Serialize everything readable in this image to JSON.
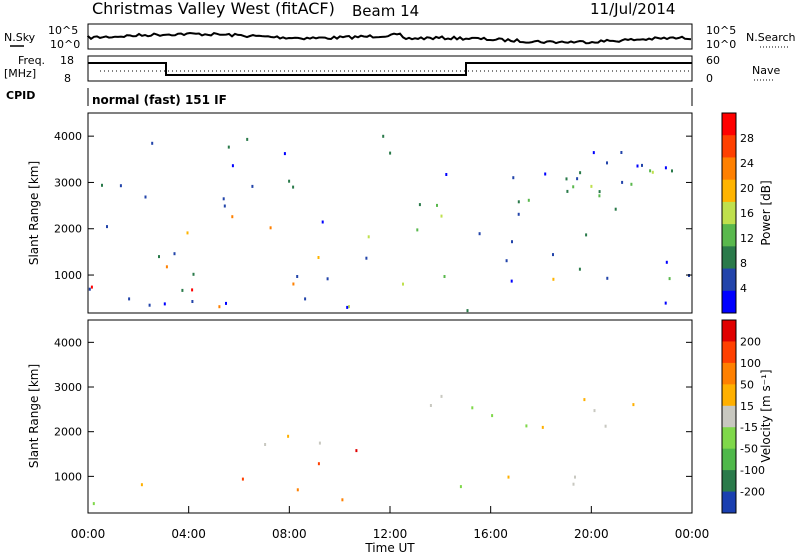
{
  "header": {
    "station": "Christmas Valley West (fitACF)",
    "beam": "Beam 14",
    "date": "11/Jul/2014"
  },
  "top_panels": {
    "nsky_label": "N.Sky",
    "nsearch_label": "N.Search",
    "noise_ticks": [
      "10^5",
      "10^0"
    ],
    "freq_label_1": "Freq.",
    "freq_label_2": "[MHz]",
    "freq_ticks": [
      "18",
      "8"
    ],
    "nave_label": "Nave",
    "nave_ticks": [
      "60",
      "0"
    ],
    "cpid_label": "CPID",
    "cpid_value": "normal (fast) 151 IF"
  },
  "chart_data": [
    {
      "type": "heatmap",
      "name": "power",
      "ylabel": "Slant Range [km]",
      "yticks": [
        1000,
        2000,
        3000,
        4000
      ],
      "ylim": [
        180,
        4500
      ],
      "colorbar_label": "Power [dB]",
      "colorbar_ticks": [
        4,
        8,
        12,
        16,
        20,
        24,
        28
      ],
      "colors": [
        "#0000ff",
        "#2244aa",
        "#2a7a4a",
        "#59b84d",
        "#bfe04d",
        "#ffb400",
        "#ff8000",
        "#ff4000",
        "#ff0000"
      ],
      "bands": [
        {
          "t0": 0,
          "t1": 4.5,
          "r0": 200,
          "r1": 950,
          "level": 8
        },
        {
          "t0": 4.5,
          "t1": 9.5,
          "r0": 300,
          "r1": 900,
          "level": 7
        },
        {
          "t0": 2.5,
          "t1": 9.5,
          "r0": 1200,
          "r1": 2300,
          "level": 6
        },
        {
          "t0": 9.5,
          "t1": 11.5,
          "r0": 250,
          "r1": 1900,
          "level": 5
        },
        {
          "t0": 11.5,
          "t1": 24,
          "r0": 700,
          "r1": 1200,
          "level": 4
        },
        {
          "t0": 13,
          "t1": 24,
          "r0": 2000,
          "r1": 3300,
          "level": 3
        },
        {
          "t0": 0,
          "t1": 24,
          "r0": 200,
          "r1": 4200,
          "level": 1
        }
      ]
    },
    {
      "type": "heatmap",
      "name": "velocity",
      "xlabel": "Time UT",
      "xticks": [
        "00:00",
        "04:00",
        "08:00",
        "12:00",
        "16:00",
        "20:00",
        "00:00"
      ],
      "xlim": [
        0,
        24
      ],
      "ylabel": "Slant Range [km]",
      "yticks": [
        1000,
        2000,
        3000,
        4000
      ],
      "ylim": [
        180,
        4500
      ],
      "colorbar_label": "Velocity [m s⁻¹]",
      "colorbar_ticks": [
        200,
        100,
        50,
        15,
        -15,
        -50,
        -100,
        -200
      ],
      "colors": [
        "#1a3fb0",
        "#2a7a4a",
        "#4fb84a",
        "#7fd84a",
        "#c8c8c0",
        "#ffb000",
        "#ff8000",
        "#ff4000",
        "#e00000"
      ],
      "bands": [
        {
          "t0": 0,
          "t1": 4.5,
          "r0": 250,
          "r1": 1000,
          "level": 4
        },
        {
          "t0": 6,
          "t1": 11,
          "r0": 250,
          "r1": 1500,
          "level": 6
        },
        {
          "t0": 9.5,
          "t1": 11,
          "r0": 1300,
          "r1": 1900,
          "level": 8
        },
        {
          "t0": 3,
          "t1": 11,
          "r0": 1600,
          "r1": 2200,
          "level": 4
        },
        {
          "t0": 13,
          "t1": 24,
          "r0": 700,
          "r1": 1200,
          "level": 4
        },
        {
          "t0": 13,
          "t1": 24,
          "r0": 2000,
          "r1": 3300,
          "level": 4
        }
      ]
    }
  ]
}
